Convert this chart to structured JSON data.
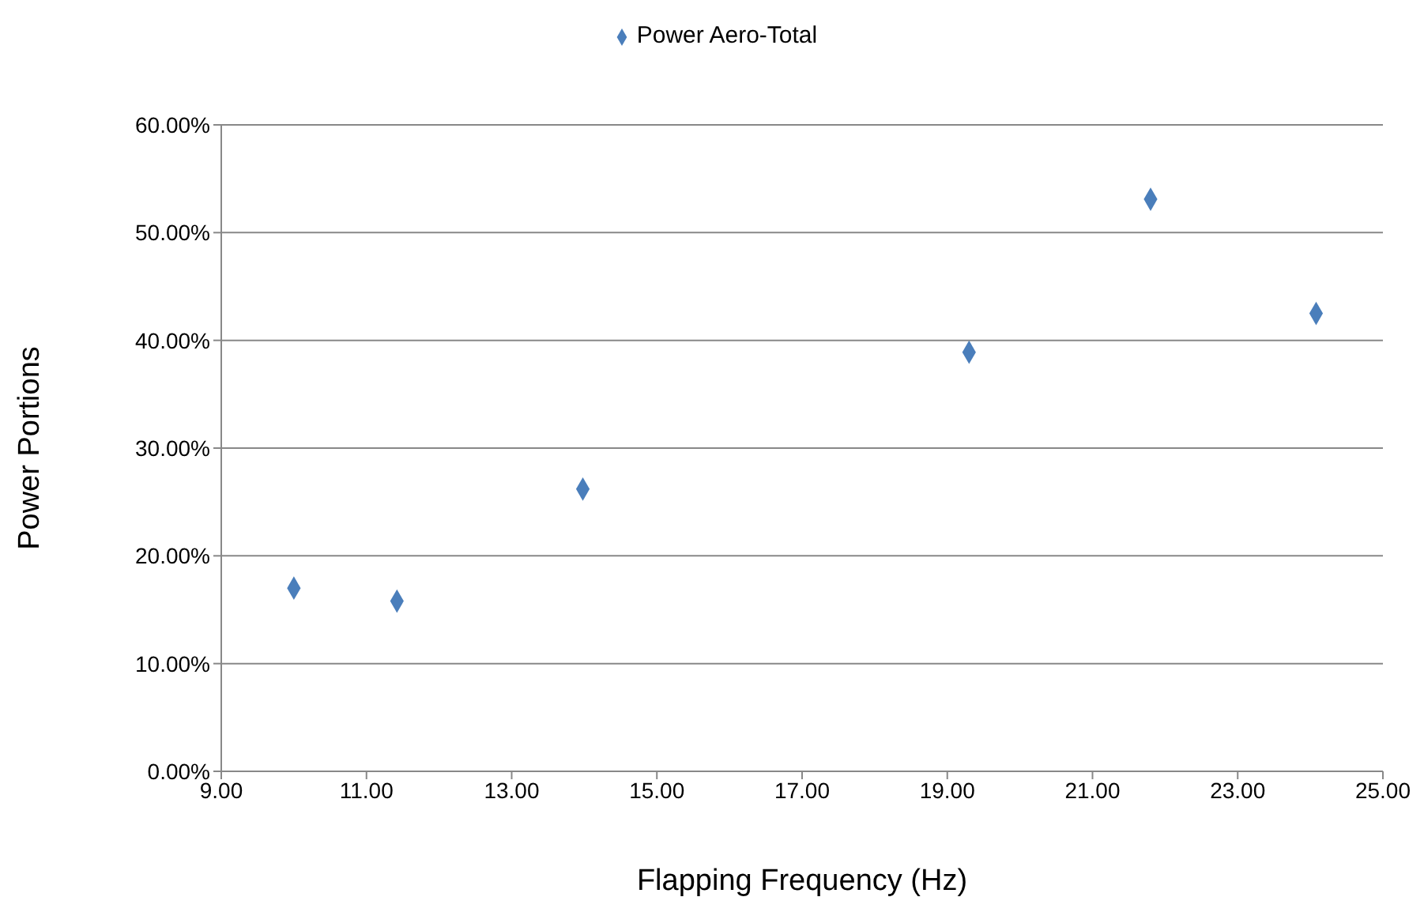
{
  "chart_data": {
    "type": "scatter",
    "xlabel": "Flapping Frequency (Hz)",
    "ylabel": "Power Portions",
    "x": [
      10.0,
      11.42,
      13.98,
      19.3,
      21.8,
      24.08
    ],
    "series": [
      {
        "name": "Power Aero-Total",
        "color": "#4a7ebb",
        "values": [
          17.0,
          15.8,
          26.2,
          38.9,
          53.1,
          42.5
        ]
      }
    ],
    "xlim": [
      9,
      25
    ],
    "xticks": [
      {
        "value": 9,
        "label": "9.00"
      },
      {
        "value": 11,
        "label": "11.00"
      },
      {
        "value": 13,
        "label": "13.00"
      },
      {
        "value": 15,
        "label": "15.00"
      },
      {
        "value": 17,
        "label": "17.00"
      },
      {
        "value": 19,
        "label": "19.00"
      },
      {
        "value": 21,
        "label": "21.00"
      },
      {
        "value": 23,
        "label": "23.00"
      },
      {
        "value": 25,
        "label": "25.00"
      }
    ],
    "ylim": [
      0,
      60
    ],
    "yticks": [
      {
        "value": 0,
        "label": "0.00%"
      },
      {
        "value": 10,
        "label": "10.00%"
      },
      {
        "value": 20,
        "label": "20.00%"
      },
      {
        "value": 30,
        "label": "30.00%"
      },
      {
        "value": 40,
        "label": "40.00%"
      },
      {
        "value": 50,
        "label": "50.00%"
      },
      {
        "value": 60,
        "label": "60.00%"
      }
    ],
    "grid": "y",
    "legend": "top",
    "marker": "diamond"
  }
}
